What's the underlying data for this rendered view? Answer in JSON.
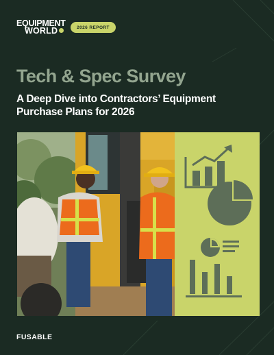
{
  "brand": {
    "logo_line1": "EQUIPMENT",
    "logo_line2": "WORLD"
  },
  "badge": {
    "label": "2026 REPORT"
  },
  "cover": {
    "title": "Tech & Spec Survey",
    "subtitle": "A Deep Dive into Contractors’ Equipment Purchase Plans for 2026"
  },
  "footer": {
    "sponsor": "FUSABLE"
  },
  "colors": {
    "background": "#1b2b23",
    "accent": "#c9d46a",
    "title": "#93a58f",
    "icon": "#5d6e58"
  },
  "icons": [
    "growth-bar-chart-icon",
    "pie-chart-icon",
    "dashboard-report-icon"
  ]
}
